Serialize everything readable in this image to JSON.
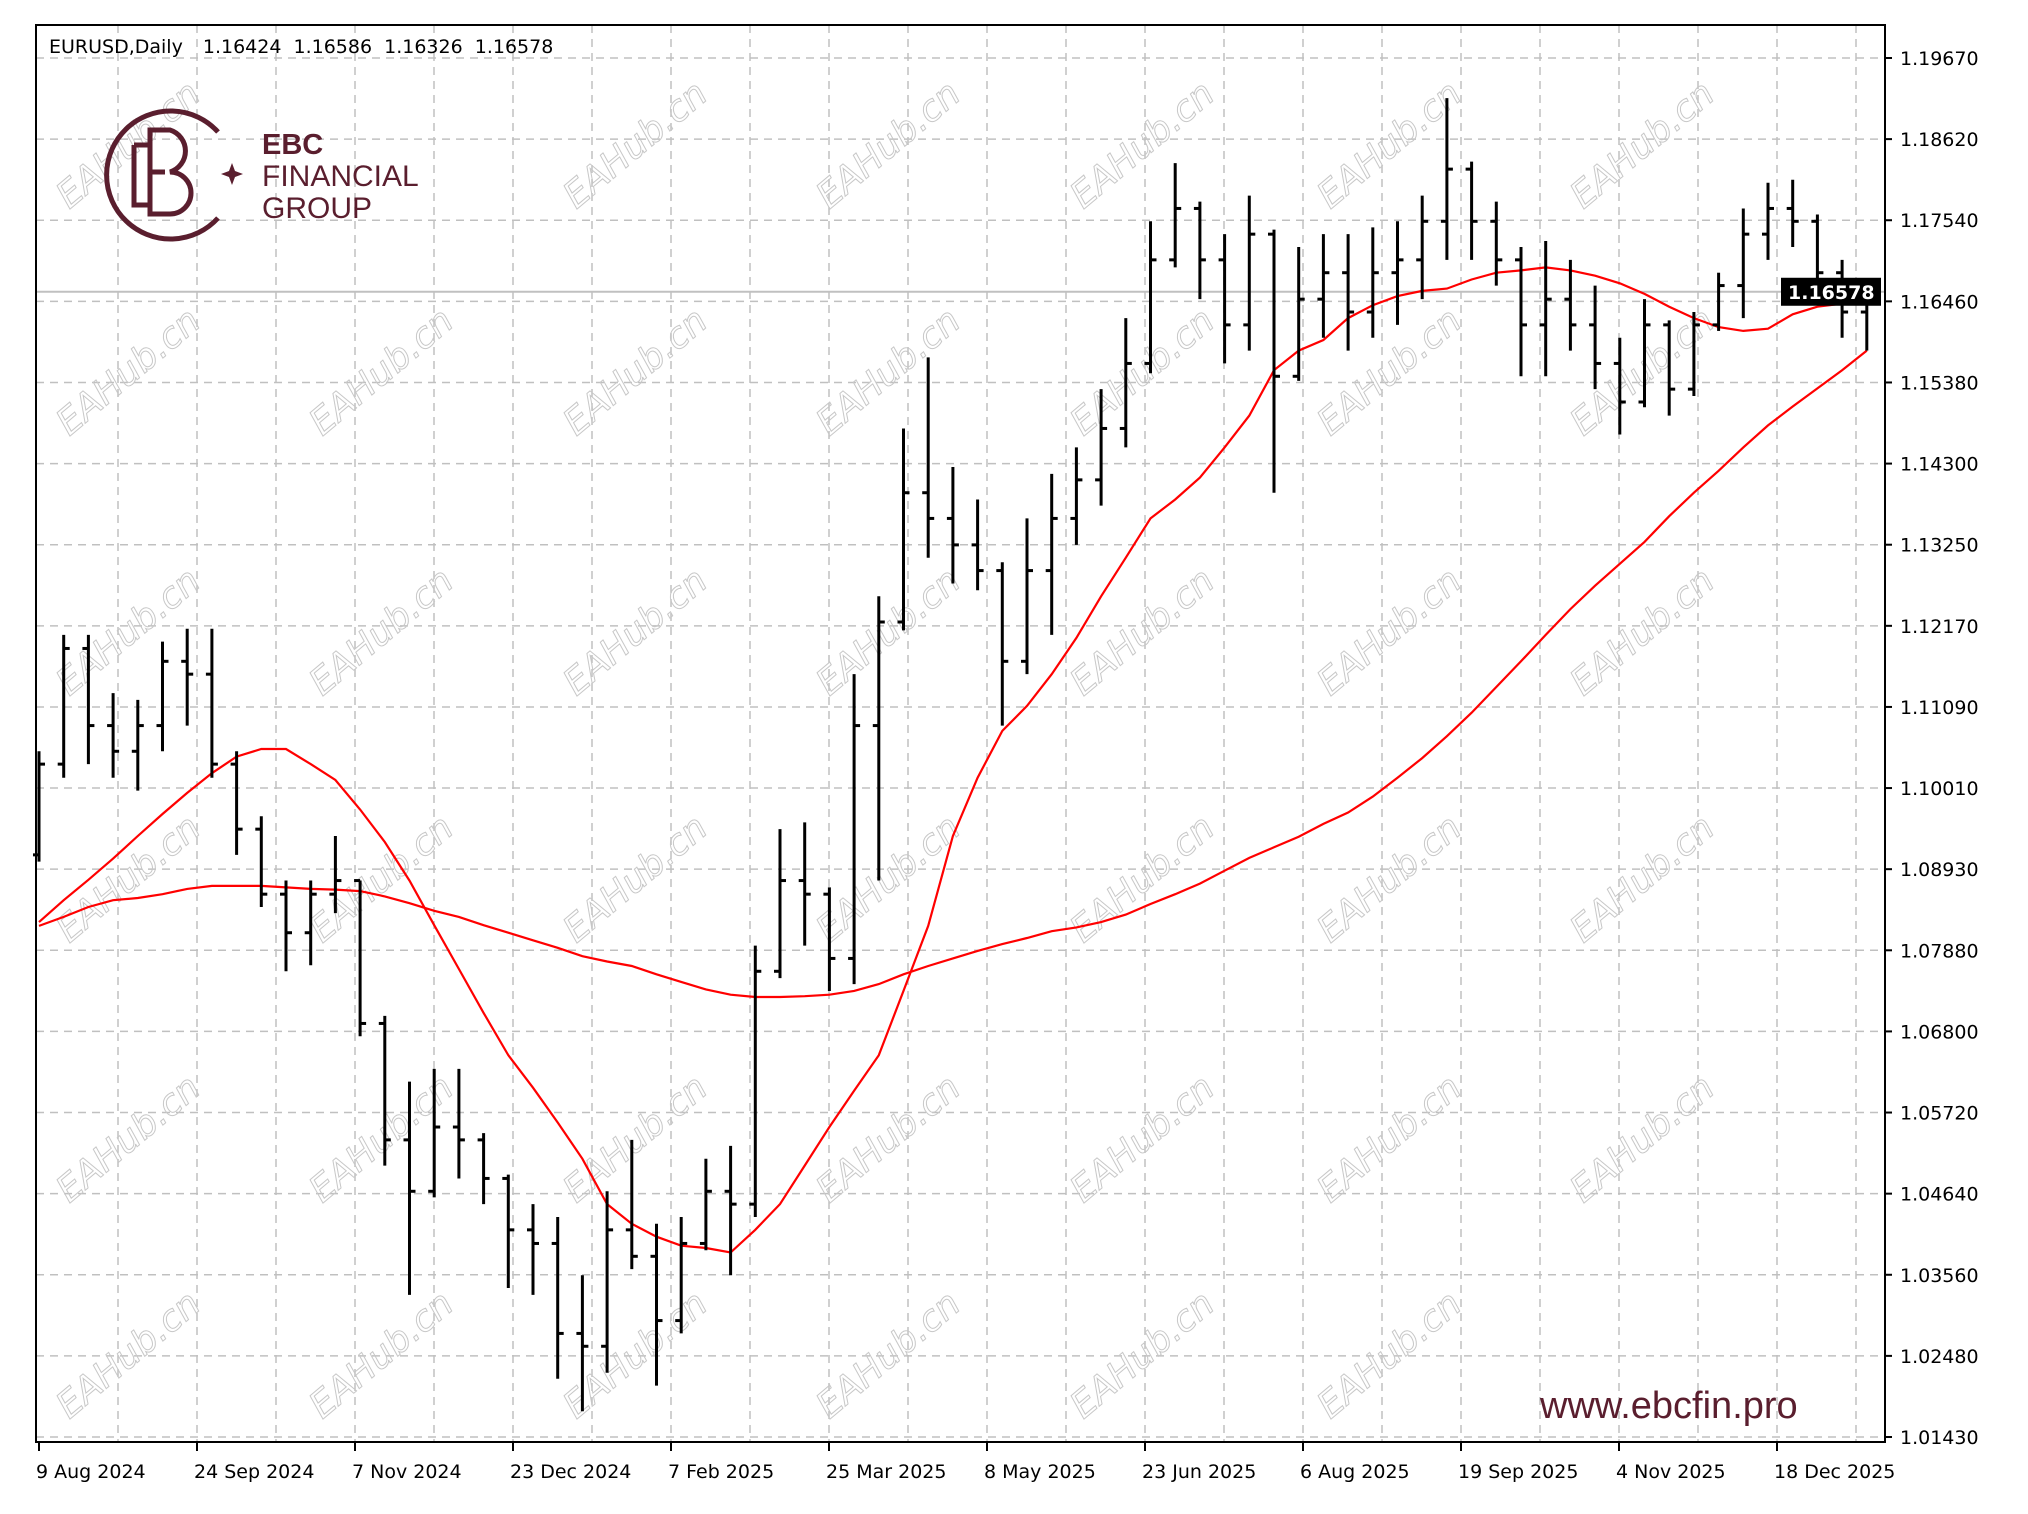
{
  "header": {
    "symbol_timeframe": "EURUSD,Daily",
    "open": "1.16424",
    "high": "1.16586",
    "low": "1.16326",
    "close": "1.16578"
  },
  "logo": {
    "line1": "EBC",
    "line2": "FINANCIAL",
    "line3": "GROUP",
    "color": "#5a1e2e"
  },
  "website": "www.ebcfin.pro",
  "watermark": "EAHub.cn",
  "chart_data": {
    "type": "ohlc",
    "title": "EURUSD,Daily",
    "ylim": [
      1.0143,
      1.1967
    ],
    "grid": true,
    "y_tick_labels": [
      "1.19670",
      "1.18620",
      "1.17540",
      "1.16460",
      "1.15380",
      "1.14300",
      "1.13250",
      "1.12170",
      "1.11090",
      "1.10010",
      "1.08930",
      "1.07880",
      "1.06800",
      "1.05720",
      "1.04640",
      "1.03560",
      "1.02480",
      "1.01430"
    ],
    "x_tick_labels": [
      "9 Aug 2024",
      "24 Sep 2024",
      "7 Nov 2024",
      "23 Dec 2024",
      "7 Feb 2025",
      "25 Mar 2025",
      "8 May 2025",
      "23 Jun 2025",
      "6 Aug 2025",
      "19 Sep 2025",
      "4 Nov 2025",
      "18 Dec 2025"
    ],
    "current_price": "1.16578",
    "colors": {
      "bars": "#000000",
      "moving_average": "#ff0000",
      "price_label_bg": "#000000",
      "price_line": "#c0c0c0",
      "grid": "#c0c0c0"
    },
    "bars_ohlc": [
      [
        1.0913,
        1.105,
        1.0904,
        1.1033
      ],
      [
        1.1033,
        1.1204,
        1.1015,
        1.1186
      ],
      [
        1.1186,
        1.1204,
        1.1033,
        1.1084
      ],
      [
        1.1084,
        1.1127,
        1.1015,
        1.105
      ],
      [
        1.105,
        1.1118,
        1.0998,
        1.1084
      ],
      [
        1.1084,
        1.1195,
        1.105,
        1.1169
      ],
      [
        1.1169,
        1.1212,
        1.1084,
        1.1152
      ],
      [
        1.1152,
        1.1212,
        1.1015,
        1.1033
      ],
      [
        1.1033,
        1.105,
        1.0913,
        1.0947
      ],
      [
        1.0947,
        1.0964,
        1.0844,
        1.0861
      ],
      [
        1.0861,
        1.0879,
        1.0759,
        1.081
      ],
      [
        1.081,
        1.0879,
        1.0767,
        1.0861
      ],
      [
        1.0861,
        1.0938,
        1.0836,
        1.0879
      ],
      [
        1.0879,
        1.0879,
        1.0673,
        1.069
      ],
      [
        1.069,
        1.07,
        1.0502,
        1.0536
      ],
      [
        1.0536,
        1.0613,
        1.0331,
        1.0468
      ],
      [
        1.0468,
        1.063,
        1.046,
        1.0553
      ],
      [
        1.0553,
        1.063,
        1.0485,
        1.0536
      ],
      [
        1.0536,
        1.0545,
        1.0451,
        1.0485
      ],
      [
        1.0485,
        1.049,
        1.034,
        1.0417
      ],
      [
        1.0417,
        1.0451,
        1.0331,
        1.0399
      ],
      [
        1.0399,
        1.0434,
        1.022,
        1.028
      ],
      [
        1.028,
        1.0357,
        1.0177,
        1.0263
      ],
      [
        1.0263,
        1.0468,
        1.0228,
        1.0417
      ],
      [
        1.0417,
        1.0536,
        1.0365,
        1.0382
      ],
      [
        1.0382,
        1.0425,
        1.0211,
        1.0297
      ],
      [
        1.0297,
        1.0434,
        1.028,
        1.0399
      ],
      [
        1.0399,
        1.0511,
        1.039,
        1.0468
      ],
      [
        1.0468,
        1.0528,
        1.0357,
        1.0451
      ],
      [
        1.0451,
        1.0793,
        1.0434,
        1.0759
      ],
      [
        1.0759,
        1.0947,
        1.075,
        1.0879
      ],
      [
        1.0879,
        1.0956,
        1.0793,
        1.0861
      ],
      [
        1.0861,
        1.087,
        1.0733,
        1.0776
      ],
      [
        1.0776,
        1.1152,
        1.0742,
        1.1084
      ],
      [
        1.1084,
        1.1255,
        1.0879,
        1.1221
      ],
      [
        1.1221,
        1.1477,
        1.121,
        1.1392
      ],
      [
        1.1392,
        1.1571,
        1.1306,
        1.1358
      ],
      [
        1.1358,
        1.1426,
        1.1272,
        1.1323
      ],
      [
        1.1323,
        1.1383,
        1.1263,
        1.1289
      ],
      [
        1.1289,
        1.13,
        1.1084,
        1.1169
      ],
      [
        1.1169,
        1.1358,
        1.1152,
        1.1289
      ],
      [
        1.1289,
        1.1417,
        1.1204,
        1.1358
      ],
      [
        1.1358,
        1.1452,
        1.1323,
        1.1409
      ],
      [
        1.1409,
        1.1529,
        1.1375,
        1.1477
      ],
      [
        1.1477,
        1.1623,
        1.1452,
        1.1563
      ],
      [
        1.1563,
        1.1751,
        1.155,
        1.17
      ],
      [
        1.17,
        1.1828,
        1.169,
        1.1768
      ],
      [
        1.1768,
        1.1777,
        1.1648,
        1.17
      ],
      [
        1.17,
        1.1734,
        1.1563,
        1.1614
      ],
      [
        1.1614,
        1.1785,
        1.158,
        1.1734
      ],
      [
        1.1734,
        1.174,
        1.1392,
        1.1546
      ],
      [
        1.1546,
        1.1717,
        1.154,
        1.1648
      ],
      [
        1.1648,
        1.1734,
        1.1597,
        1.1683
      ],
      [
        1.1683,
        1.1734,
        1.158,
        1.1631
      ],
      [
        1.1631,
        1.1743,
        1.1597,
        1.1683
      ],
      [
        1.1683,
        1.1751,
        1.1614,
        1.17
      ],
      [
        1.17,
        1.1785,
        1.1648,
        1.1751
      ],
      [
        1.1751,
        1.1914,
        1.17,
        1.182
      ],
      [
        1.182,
        1.183,
        1.17,
        1.1751
      ],
      [
        1.1751,
        1.1777,
        1.1666,
        1.17
      ],
      [
        1.17,
        1.1717,
        1.1546,
        1.1614
      ],
      [
        1.1614,
        1.1725,
        1.1546,
        1.1648
      ],
      [
        1.1648,
        1.17,
        1.158,
        1.1614
      ],
      [
        1.1614,
        1.1666,
        1.1529,
        1.1563
      ],
      [
        1.1563,
        1.1597,
        1.1469,
        1.1512
      ],
      [
        1.1512,
        1.1648,
        1.1505,
        1.1614
      ],
      [
        1.1614,
        1.162,
        1.1494,
        1.1529
      ],
      [
        1.1529,
        1.1631,
        1.152,
        1.1614
      ],
      [
        1.1614,
        1.1683,
        1.1606,
        1.1666
      ],
      [
        1.1666,
        1.1768,
        1.1623,
        1.1734
      ],
      [
        1.1734,
        1.1802,
        1.17,
        1.1768
      ],
      [
        1.1768,
        1.1806,
        1.1717,
        1.1751
      ],
      [
        1.1751,
        1.176,
        1.1648,
        1.1683
      ],
      [
        1.1683,
        1.17,
        1.1597,
        1.1631
      ],
      [
        1.1631,
        1.1659,
        1.158,
        1.1658
      ]
    ],
    "moving_averages": [
      {
        "values": [
          1.0824,
          1.0853,
          1.088,
          1.0908,
          1.0938,
          1.0967,
          1.0995,
          1.1021,
          1.1043,
          1.1053,
          1.1053,
          1.1033,
          1.1012,
          1.0973,
          1.093,
          1.0879,
          1.082,
          1.0762,
          1.0704,
          1.0648,
          1.0605,
          1.0559,
          1.0511,
          1.0451,
          1.0425,
          1.0408,
          1.0396,
          1.0393,
          1.0387,
          1.0417,
          1.0451,
          1.0502,
          1.0553,
          1.0601,
          1.0648,
          1.0733,
          1.0819,
          1.0938,
          1.1015,
          1.1077,
          1.111,
          1.1152,
          1.12,
          1.1255,
          1.1306,
          1.1358,
          1.1383,
          1.1412,
          1.1452,
          1.1494,
          1.1554,
          1.158,
          1.1594,
          1.1623,
          1.164,
          1.1652,
          1.1659,
          1.1662,
          1.1674,
          1.1683,
          1.1686,
          1.169,
          1.1686,
          1.1679,
          1.1669,
          1.1655,
          1.1638,
          1.1623,
          1.1611,
          1.1606,
          1.1609,
          1.1628,
          1.1638,
          1.1642,
          1.1648
        ]
      },
      {
        "values": [
          1.0819,
          1.0831,
          1.0844,
          1.0853,
          1.0856,
          1.0861,
          1.0868,
          1.0872,
          1.0872,
          1.0872,
          1.087,
          1.0868,
          1.0867,
          1.0865,
          1.0858,
          1.0849,
          1.0839,
          1.0831,
          1.082,
          1.081,
          1.08,
          1.079,
          1.0779,
          1.0772,
          1.0766,
          1.0755,
          1.0745,
          1.0735,
          1.0728,
          1.0725,
          1.0725,
          1.0726,
          1.0728,
          1.0733,
          1.0742,
          1.0755,
          1.0766,
          1.0776,
          1.0786,
          1.0795,
          1.0803,
          1.0812,
          1.0817,
          1.0824,
          1.0834,
          1.0848,
          1.0861,
          1.0875,
          1.0892,
          1.0909,
          1.0923,
          1.0937,
          1.0954,
          1.0969,
          1.099,
          1.1015,
          1.1041,
          1.107,
          1.1101,
          1.1135,
          1.1169,
          1.1204,
          1.1238,
          1.1269,
          1.1298,
          1.1327,
          1.1361,
          1.1392,
          1.1421,
          1.1452,
          1.1481,
          1.1506,
          1.153,
          1.1554,
          1.158
        ]
      }
    ]
  }
}
